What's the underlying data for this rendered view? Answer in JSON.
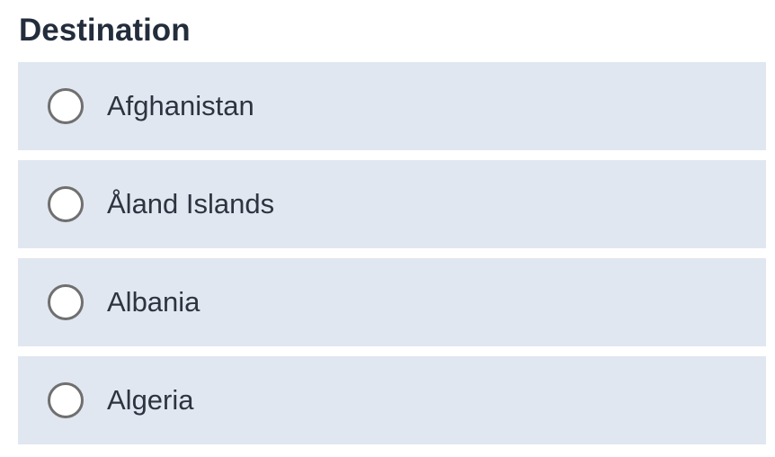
{
  "heading": "Destination",
  "options": [
    {
      "label": "Afghanistan",
      "selected": false
    },
    {
      "label": "Åland Islands",
      "selected": false
    },
    {
      "label": "Albania",
      "selected": false
    },
    {
      "label": "Algeria",
      "selected": false
    }
  ]
}
